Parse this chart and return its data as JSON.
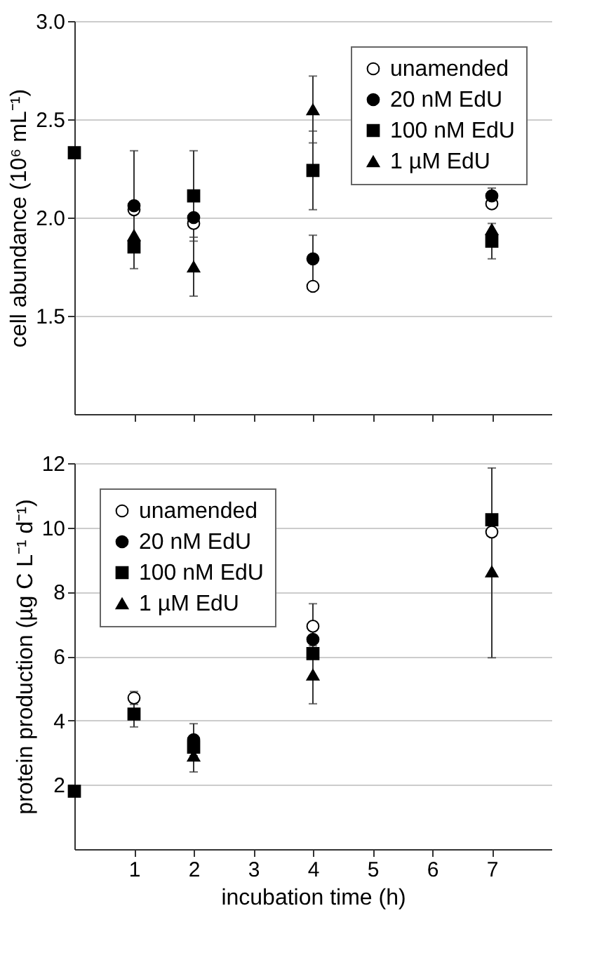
{
  "chart_data": [
    {
      "type": "scatter",
      "ylabel": "cell abundance (10⁶ mL⁻¹)",
      "x": [
        0,
        1,
        2,
        4,
        7
      ],
      "xlim": [
        0,
        8
      ],
      "xticks": [
        1,
        2,
        3,
        4,
        5,
        6,
        7
      ],
      "ylim": [
        1.0,
        3.0
      ],
      "yticks": [
        {
          "value": 1.5,
          "label": "1.5"
        },
        {
          "value": 2,
          "label": "2.0"
        },
        {
          "value": 2.5,
          "label": "2.5"
        },
        {
          "value": 3,
          "label": "3.0"
        }
      ],
      "grid": "y",
      "legend": "top right",
      "tick_labels": "y",
      "series": [
        {
          "name": "unamended",
          "color": "#ffffff",
          "marker": "circle",
          "values": [
            null,
            2.04,
            1.97,
            1.65,
            2.07
          ],
          "errors": [
            null,
            0.3,
            null,
            null,
            null
          ]
        },
        {
          "name": "20 nM EdU",
          "color": "#000000",
          "marker": "circle",
          "values": [
            null,
            2.06,
            2.0,
            1.79,
            2.11
          ],
          "errors": [
            null,
            null,
            null,
            0.12,
            0.04
          ]
        },
        {
          "name": "100 nM EdU",
          "color": "#000000",
          "marker": "square",
          "values": [
            2.33,
            1.85,
            2.11,
            2.24,
            1.88
          ],
          "errors": [
            null,
            null,
            0.23,
            0.2,
            0.09
          ]
        },
        {
          "name": "1 µM EdU",
          "color": "#000000",
          "marker": "triangle",
          "values": [
            null,
            1.91,
            1.75,
            2.55,
            1.94
          ],
          "errors": [
            null,
            null,
            0.15,
            0.17,
            null
          ]
        }
      ]
    },
    {
      "type": "scatter",
      "ylabel": "protein production (µg C L⁻¹ d⁻¹)",
      "xlabel": "incubation time (h)",
      "x": [
        0,
        1,
        2,
        4,
        7
      ],
      "xlim": [
        0,
        8
      ],
      "xticks": [
        1,
        2,
        3,
        4,
        5,
        6,
        7
      ],
      "ylim": [
        0,
        12
      ],
      "yticks": [
        2,
        4,
        6,
        8,
        10,
        12
      ],
      "grid": "y",
      "legend": "top left",
      "series": [
        {
          "name": "unamended",
          "color": "#ffffff",
          "marker": "circle",
          "values": [
            null,
            4.7,
            null,
            6.93,
            9.86
          ],
          "errors": [
            null,
            0.2,
            null,
            0.7,
            null
          ]
        },
        {
          "name": "20 nM EdU",
          "color": "#000000",
          "marker": "circle",
          "values": [
            null,
            null,
            3.4,
            6.52,
            null
          ],
          "errors": [
            null,
            null,
            0.5,
            null,
            null
          ]
        },
        {
          "name": "100 nM EdU",
          "color": "#000000",
          "marker": "square",
          "values": [
            1.8,
            4.2,
            3.17,
            6.08,
            10.24
          ],
          "errors": [
            null,
            0.4,
            null,
            null,
            null
          ]
        },
        {
          "name": "1 µM EdU",
          "color": "#000000",
          "marker": "triangle",
          "values": [
            null,
            null,
            2.9,
            5.42,
            8.63
          ],
          "errors": [
            null,
            null,
            0.5,
            0.9,
            [
              5.95,
              11.85
            ]
          ]
        }
      ]
    }
  ]
}
